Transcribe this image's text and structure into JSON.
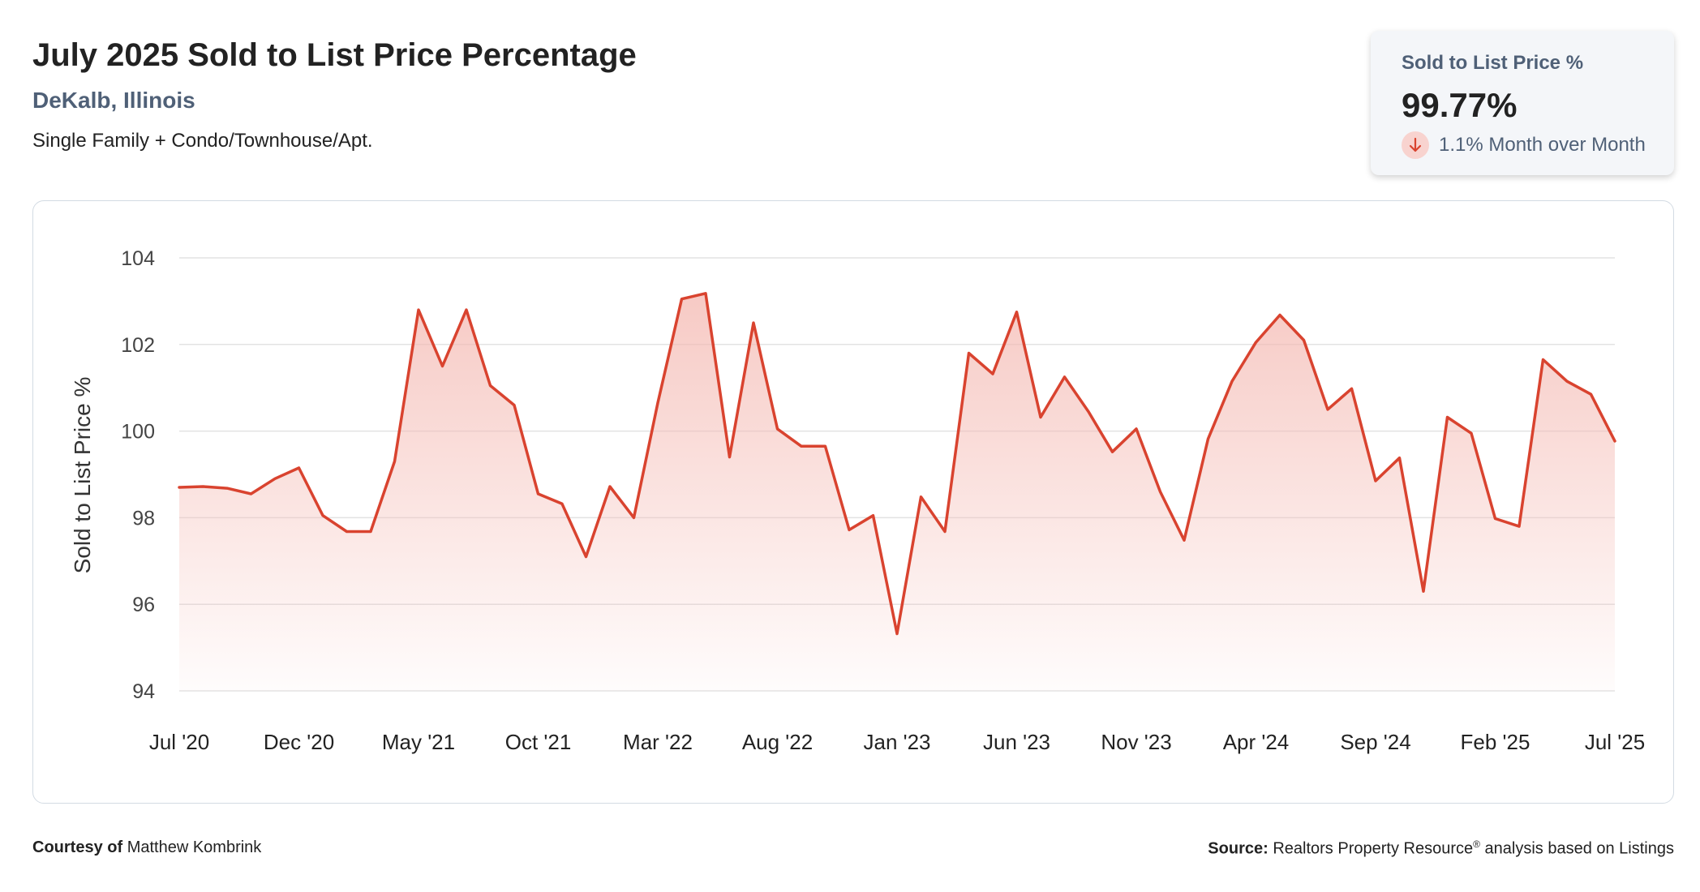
{
  "header": {
    "title": "July 2025 Sold to List Price Percentage",
    "location": "DeKalb, Illinois",
    "property_type": "Single Family + Condo/Townhouse/Apt."
  },
  "kpi": {
    "label": "Sold to List Price %",
    "value": "99.77%",
    "change": "1.1% Month over Month",
    "direction": "down",
    "icon": "arrow-down-icon"
  },
  "footer": {
    "courtesy_label": "Courtesy of",
    "courtesy_name": "Matthew Kombrink",
    "source_label": "Source:",
    "source_text": "Realtors Property Resource",
    "source_reg": "®",
    "source_suffix": " analysis based on Listings"
  },
  "colors": {
    "line": "#d9432f",
    "fill": "#f4b8b1",
    "grid": "#e3e3e3",
    "title": "#222222",
    "subtitle": "#4f6077"
  },
  "chart_data": {
    "type": "area",
    "ylabel": "Sold to List Price %",
    "xlabel": "",
    "ylim": [
      94,
      104
    ],
    "yticks": [
      94,
      96,
      98,
      100,
      102,
      104
    ],
    "grid": true,
    "x": [
      "Jul '20",
      "Aug '20",
      "Sep '20",
      "Oct '20",
      "Nov '20",
      "Dec '20",
      "Jan '21",
      "Feb '21",
      "Mar '21",
      "Apr '21",
      "May '21",
      "Jun '21",
      "Jul '21",
      "Aug '21",
      "Sep '21",
      "Oct '21",
      "Nov '21",
      "Dec '21",
      "Jan '22",
      "Feb '22",
      "Mar '22",
      "Apr '22",
      "May '22",
      "Jun '22",
      "Jul '22",
      "Aug '22",
      "Sep '22",
      "Oct '22",
      "Nov '22",
      "Dec '22",
      "Jan '23",
      "Feb '23",
      "Mar '23",
      "Apr '23",
      "May '23",
      "Jun '23",
      "Jul '23",
      "Aug '23",
      "Sep '23",
      "Oct '23",
      "Nov '23",
      "Dec '23",
      "Jan '24",
      "Feb '24",
      "Mar '24",
      "Apr '24",
      "May '24",
      "Jun '24",
      "Jul '24",
      "Aug '24",
      "Sep '24",
      "Oct '24",
      "Nov '24",
      "Dec '24",
      "Jan '25",
      "Feb '25",
      "Mar '25",
      "Apr '25",
      "May '25",
      "Jun '25",
      "Jul '25"
    ],
    "xtick_labels": [
      "Jul '20",
      "Dec '20",
      "May '21",
      "Oct '21",
      "Mar '22",
      "Aug '22",
      "Jan '23",
      "Jun '23",
      "Nov '23",
      "Apr '24",
      "Sep '24",
      "Feb '25",
      "Jul '25"
    ],
    "values": [
      98.7,
      98.72,
      98.68,
      98.55,
      98.9,
      99.15,
      98.05,
      97.68,
      97.68,
      99.3,
      102.8,
      101.5,
      102.8,
      101.05,
      100.6,
      98.55,
      98.32,
      97.1,
      98.72,
      98.0,
      100.65,
      103.05,
      103.18,
      99.4,
      102.5,
      100.05,
      99.65,
      99.65,
      97.72,
      98.05,
      95.32,
      98.48,
      97.68,
      101.8,
      101.32,
      102.75,
      100.32,
      101.25,
      100.45,
      99.52,
      100.05,
      98.6,
      97.48,
      99.82,
      101.15,
      102.05,
      102.68,
      102.1,
      100.5,
      100.98,
      98.85,
      99.38,
      96.3,
      100.32,
      99.95,
      97.98,
      97.8,
      101.65,
      101.15,
      100.85,
      99.77
    ]
  }
}
